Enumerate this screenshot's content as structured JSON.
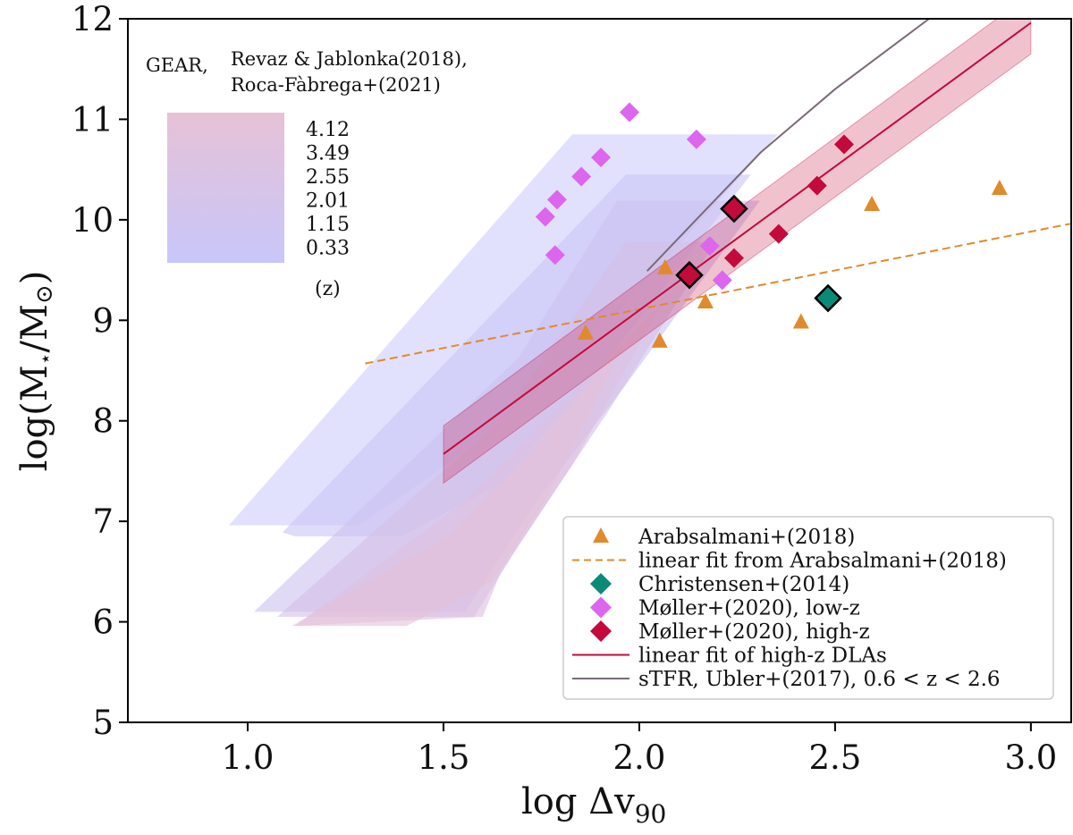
{
  "chart_data": {
    "type": "scatter",
    "xlabel": "log Δv",
    "xlabel_sub": "90",
    "ylabel": "log(M",
    "ylabel_sub": "⋆",
    "ylabel_mid": "/M",
    "ylabel_sub2": "⊙",
    "ylabel_end": ")",
    "xlim": [
      0.694,
      3.103
    ],
    "ylim": [
      5,
      12
    ],
    "xticks": [
      "1.0",
      "1.5",
      "2.0",
      "2.5",
      "3.0"
    ],
    "yticks": [
      "5",
      "6",
      "7",
      "8",
      "9",
      "10",
      "11",
      "12"
    ],
    "grid": false,
    "legend_placement": "lower-right",
    "series": [
      {
        "name": "Arabsalmani+(2018)",
        "kind": "triangle",
        "color": "#e08a2c",
        "points": [
          [
            1.863,
            8.87
          ],
          [
            2.066,
            9.52
          ],
          [
            2.052,
            8.79
          ],
          [
            2.169,
            9.18
          ],
          [
            2.413,
            8.98
          ],
          [
            2.594,
            10.15
          ],
          [
            2.92,
            10.31
          ]
        ]
      },
      {
        "name": "linear fit from Arabsalmani+(2018)",
        "kind": "dashed-line",
        "color": "#e08a2c",
        "points": [
          [
            1.3,
            8.57
          ],
          [
            3.1,
            9.96
          ]
        ]
      },
      {
        "name": "Christensen+(2014)",
        "kind": "diamond",
        "color": "#0b8a78",
        "outlined": true,
        "points": [
          [
            2.482,
            9.22
          ]
        ]
      },
      {
        "name": "Møller+(2020), low-z",
        "kind": "diamond",
        "color": "#dd66ee",
        "points": [
          [
            1.975,
            11.07
          ],
          [
            2.146,
            10.8
          ],
          [
            1.902,
            10.62
          ],
          [
            1.852,
            10.43
          ],
          [
            1.79,
            10.2
          ],
          [
            1.76,
            10.03
          ],
          [
            1.785,
            9.65
          ],
          [
            2.18,
            9.74
          ],
          [
            2.212,
            9.4
          ]
        ]
      },
      {
        "name": "Møller+(2020), high-z",
        "kind": "diamond",
        "color": "#c20a3c",
        "points": [
          [
            2.523,
            10.75
          ],
          [
            2.454,
            10.34
          ],
          [
            2.356,
            9.86
          ],
          [
            2.242,
            9.62
          ]
        ],
        "outlined_points": [
          [
            2.242,
            10.11
          ],
          [
            2.128,
            9.45
          ]
        ]
      },
      {
        "name": "linear fit of high-z DLAs",
        "kind": "line",
        "color": "#c20a3c",
        "points": [
          [
            1.5,
            7.67
          ],
          [
            3.0,
            11.96
          ]
        ],
        "band_lower": [
          [
            1.5,
            7.38
          ],
          [
            3.0,
            11.65
          ]
        ],
        "band_upper": [
          [
            1.5,
            7.95
          ],
          [
            3.0,
            12.25
          ]
        ]
      },
      {
        "name": "sTFR, Ubler+(2017), 0.6 < z < 2.6",
        "kind": "line",
        "color": "#7a6a78",
        "points": [
          [
            2.02,
            9.49
          ],
          [
            2.15,
            10.02
          ],
          [
            2.31,
            10.67
          ],
          [
            2.5,
            11.3
          ],
          [
            2.74,
            12.0
          ]
        ]
      }
    ],
    "gear": {
      "title_prefix": "GEAR,",
      "title_line1": "Revaz & Jablonka(2018),",
      "title_line2": "Roca-Fàbrega+(2021)",
      "colorbar_labels": [
        "4.12",
        "3.49",
        "2.55",
        "2.01",
        "1.15",
        "0.33"
      ],
      "colorbar_unit": "(z)",
      "color_low_z": "#c8c6fa",
      "color_high_z": "#e6c2d6",
      "regions": [
        {
          "z": "0.33",
          "color": "#cfcdfb",
          "polygon": [
            [
              0.952,
              6.96
            ],
            [
              1.829,
              10.85
            ],
            [
              2.354,
              10.85
            ],
            [
              1.966,
              9.16
            ],
            [
              1.783,
              8.45
            ],
            [
              1.509,
              7.56
            ],
            [
              1.281,
              6.96
            ]
          ]
        },
        {
          "z": "1.15",
          "color": "#c9c5f6",
          "polygon": [
            [
              1.089,
              6.89
            ],
            [
              1.966,
              10.45
            ],
            [
              2.285,
              10.45
            ],
            [
              1.852,
              8.27
            ],
            [
              1.646,
              7.38
            ],
            [
              1.395,
              6.85
            ],
            [
              1.121,
              6.85
            ]
          ]
        },
        {
          "z": "2.01",
          "color": "#cdc2f0",
          "polygon": [
            [
              1.016,
              6.1
            ],
            [
              1.692,
              8.63
            ],
            [
              1.943,
              10.19
            ],
            [
              2.308,
              10.19
            ],
            [
              1.966,
              8.36
            ],
            [
              1.737,
              7.2
            ],
            [
              1.555,
              6.1
            ]
          ]
        },
        {
          "z": "2.55",
          "color": "#d4c0e8",
          "polygon": [
            [
              1.075,
              6.05
            ],
            [
              1.646,
              8.01
            ],
            [
              1.966,
              9.78
            ],
            [
              2.194,
              9.78
            ],
            [
              1.92,
              8.09
            ],
            [
              1.692,
              6.76
            ],
            [
              1.578,
              6.05
            ]
          ]
        },
        {
          "z": "3.49",
          "color": "#dcc0e0",
          "polygon": [
            [
              1.121,
              5.96
            ],
            [
              1.555,
              7.2
            ],
            [
              1.852,
              8.36
            ],
            [
              2.057,
              9.16
            ],
            [
              1.829,
              7.56
            ],
            [
              1.646,
              6.49
            ],
            [
              1.6,
              6.05
            ]
          ]
        },
        {
          "z": "4.12",
          "color": "#e4c2d8",
          "polygon": [
            [
              1.112,
              5.96
            ],
            [
              1.509,
              6.85
            ],
            [
              1.737,
              7.74
            ],
            [
              1.966,
              8.81
            ],
            [
              1.76,
              7.2
            ],
            [
              1.623,
              6.4
            ],
            [
              1.406,
              5.96
            ]
          ]
        }
      ]
    }
  }
}
